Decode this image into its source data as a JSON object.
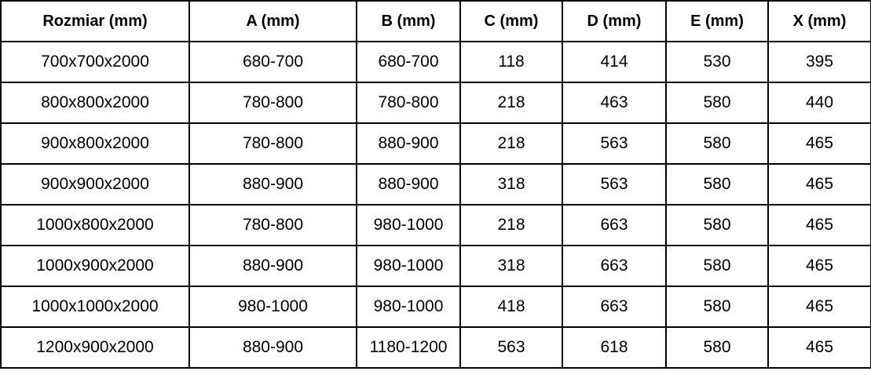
{
  "table": {
    "headers": [
      "Rozmiar (mm)",
      "A (mm)",
      "B (mm)",
      "C (mm)",
      "D (mm)",
      "E (mm)",
      "X (mm)"
    ],
    "rows": [
      [
        "700x700x2000",
        "680-700",
        "680-700",
        "118",
        "414",
        "530",
        "395"
      ],
      [
        "800x800x2000",
        "780-800",
        "780-800",
        "218",
        "463",
        "580",
        "440"
      ],
      [
        "900x800x2000",
        "780-800",
        "880-900",
        "218",
        "563",
        "580",
        "465"
      ],
      [
        "900x900x2000",
        "880-900",
        "880-900",
        "318",
        "563",
        "580",
        "465"
      ],
      [
        "1000x800x2000",
        "780-800",
        "980-1000",
        "218",
        "663",
        "580",
        "465"
      ],
      [
        "1000x900x2000",
        "880-900",
        "980-1000",
        "318",
        "663",
        "580",
        "465"
      ],
      [
        "1000x1000x2000",
        "980-1000",
        "980-1000",
        "418",
        "663",
        "580",
        "465"
      ],
      [
        "1200x900x2000",
        "880-900",
        "1180-1200",
        "563",
        "618",
        "580",
        "465"
      ]
    ]
  }
}
